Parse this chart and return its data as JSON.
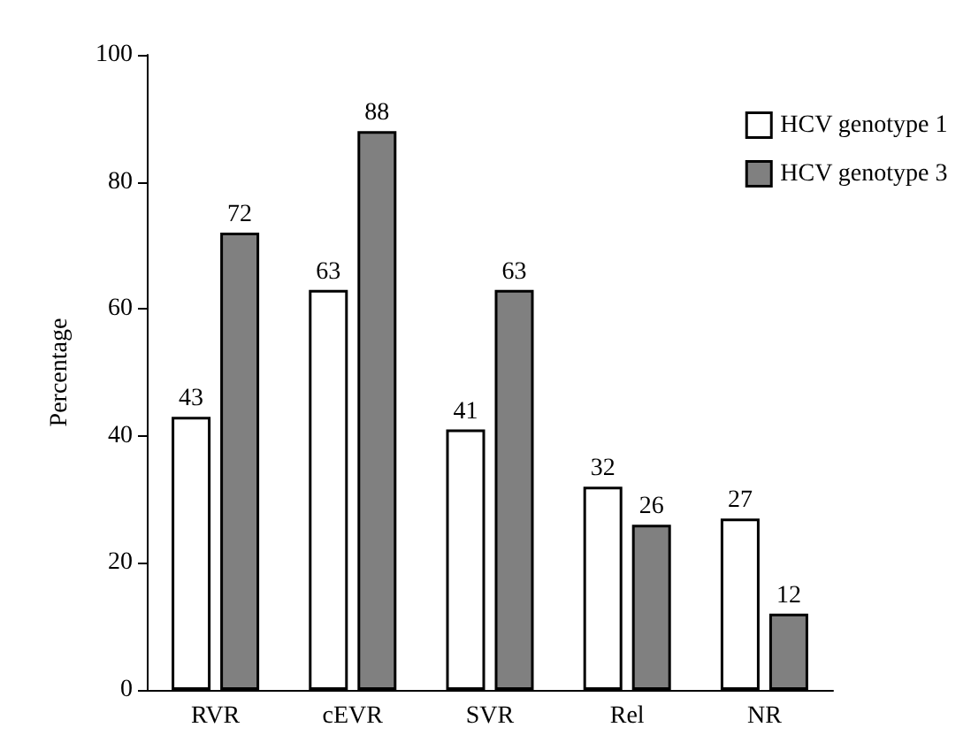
{
  "chart_data": {
    "type": "bar",
    "ylabel": "Percentage",
    "categories": [
      "RVR",
      "cEVR",
      "SVR",
      "Rel",
      "NR"
    ],
    "series": [
      {
        "name": "HCV genotype 1",
        "color": "#ffffff",
        "values": [
          43,
          63,
          41,
          32,
          27
        ]
      },
      {
        "name": "HCV genotype 3",
        "color": "#808080",
        "values": [
          72,
          88,
          63,
          26,
          12
        ]
      }
    ],
    "ylim": [
      0,
      100
    ],
    "yticks": [
      0,
      20,
      40,
      60,
      80,
      100
    ],
    "data_labels": true,
    "grid": false,
    "legend": "top right"
  }
}
